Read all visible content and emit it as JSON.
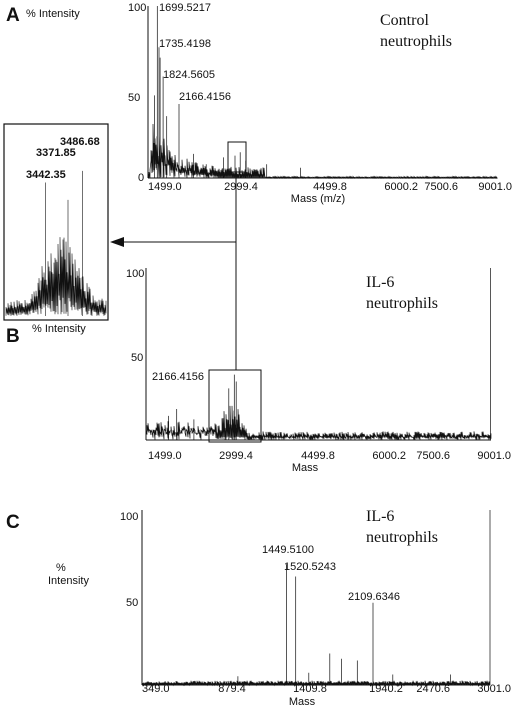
{
  "panels": [
    {
      "letter": "A",
      "ylabel": "% Intensity",
      "xlabel": "Mass (m/z)",
      "condition": [
        "Control",
        "neutrophils"
      ],
      "y_ticks": [
        "100",
        "50",
        "0"
      ],
      "x_ticks": [
        "1499.0",
        "2999.4",
        "4499.8",
        "6000.2",
        "7500.6",
        "9001.0"
      ],
      "peak_labels": [
        "1699.5217",
        "1735.4198",
        "1824.5605",
        "2166.4156"
      ]
    },
    {
      "letter": "B",
      "ylabel": "% Intensity",
      "xlabel": "Mass",
      "condition": [
        "IL-6",
        "neutrophils"
      ],
      "y_ticks": [
        "100",
        "50"
      ],
      "x_ticks": [
        "1499.0",
        "2999.4",
        "4499.8",
        "6000.2",
        "7500.6",
        "9001.0"
      ],
      "peak_labels": [
        "2166.4156"
      ]
    },
    {
      "letter": "C",
      "ylabel": [
        "%",
        "Intensity"
      ],
      "xlabel": "Mass",
      "condition": [
        "IL-6",
        "neutrophils"
      ],
      "y_ticks": [
        "100",
        "50"
      ],
      "x_ticks": [
        "349.0",
        "879.4",
        "1409.8",
        "1940.2",
        "2470.6",
        "3001.0"
      ],
      "peak_labels": [
        "1449.5100",
        "1520.5243",
        "2109.6346"
      ]
    }
  ],
  "inset": {
    "peak_labels": [
      "3486.68",
      "3371.85",
      "3442.35"
    ]
  },
  "chart_data": [
    {
      "type": "line",
      "title": "",
      "xlabel": "Mass (m/z)",
      "ylabel": "% Intensity",
      "xlim": [
        1499.0,
        9001.0
      ],
      "ylim": [
        0,
        100
      ],
      "labeled_peaks": [
        {
          "x": 1699.5217,
          "y": 100
        },
        {
          "x": 1735.4198,
          "y": 76
        },
        {
          "x": 1824.5605,
          "y": 59
        },
        {
          "x": 2166.4156,
          "y": 43
        }
      ]
    },
    {
      "type": "line",
      "title": "",
      "xlabel": "Mass",
      "ylabel": "% Intensity",
      "xlim": [
        1499.0,
        9001.0
      ],
      "ylim": [
        0,
        100
      ],
      "labeled_peaks": [
        {
          "x": 2166.4156,
          "y": 18
        },
        {
          "x": 3420,
          "y": 38
        }
      ]
    },
    {
      "type": "line",
      "title": "",
      "xlabel": "Mass",
      "ylabel": "% Intensity",
      "xlim": [
        349.0,
        3001.0
      ],
      "ylim": [
        0,
        100
      ],
      "labeled_peaks": [
        {
          "x": 1449.51,
          "y": 69
        },
        {
          "x": 1520.5243,
          "y": 62
        },
        {
          "x": 2109.6346,
          "y": 47
        },
        {
          "x": 3001.0,
          "y": 100
        }
      ]
    },
    {
      "type": "line",
      "title": "",
      "labeled_peaks": [
        {
          "x": 3371.85,
          "y": 92
        },
        {
          "x": 3442.35,
          "y": 80
        },
        {
          "x": 3486.68,
          "y": 100
        }
      ]
    }
  ]
}
